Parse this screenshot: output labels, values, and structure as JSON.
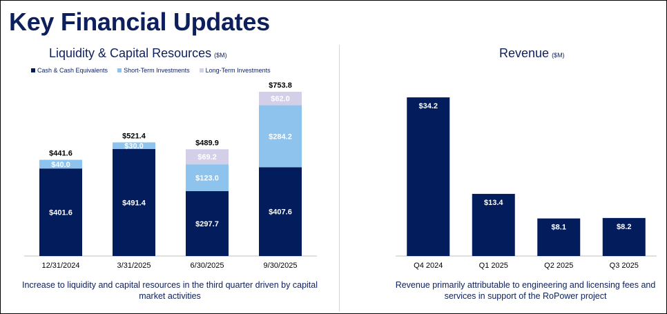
{
  "page": {
    "title": "Key Financial Updates"
  },
  "colors": {
    "navy": "#031c5c",
    "light_blue": "#8dc3ec",
    "lavender": "#d4cfe8",
    "title_navy": "#0d1f5c",
    "axis": "#bfbfbf"
  },
  "chart_data": [
    {
      "type": "bar",
      "stacked": true,
      "title": "Liquidity & Capital Resources",
      "unit": "($M)",
      "categories": [
        "12/31/2024",
        "3/31/2025",
        "6/30/2025",
        "9/30/2025"
      ],
      "series": [
        {
          "name": "Cash & Cash Equivalents",
          "values": [
            401.6,
            491.4,
            297.7,
            407.6
          ],
          "labels": [
            "$401.6",
            "$491.4",
            "$297.7",
            "$407.6"
          ],
          "color": "#031c5c"
        },
        {
          "name": "Short-Term Investments",
          "values": [
            40.0,
            30.0,
            123.0,
            284.2
          ],
          "labels": [
            "$40.0",
            "$30.0",
            "$123.0",
            "$284.2"
          ],
          "color": "#8dc3ec"
        },
        {
          "name": "Long-Term Investments",
          "values": [
            0,
            0,
            69.2,
            62.0
          ],
          "labels": [
            "",
            "",
            "$69.2",
            "$62.0"
          ],
          "color": "#d4cfe8"
        }
      ],
      "totals": [
        441.6,
        521.4,
        489.9,
        753.8
      ],
      "total_labels": [
        "$441.6",
        "$521.4",
        "$489.9",
        "$753.8"
      ],
      "ylim": [
        0,
        760
      ],
      "legend": "top"
    },
    {
      "type": "bar",
      "title": "Revenue",
      "unit": "($M)",
      "categories": [
        "Q4 2024",
        "Q1 2025",
        "Q2 2025",
        "Q3 2025"
      ],
      "values": [
        34.2,
        13.4,
        8.1,
        8.2
      ],
      "labels": [
        "$34.2",
        "$13.4",
        "$8.1",
        "$8.2"
      ],
      "color": "#031c5c",
      "ylim": [
        0,
        36
      ]
    }
  ],
  "captions": {
    "liquidity": "Increase to liquidity and capital resources in the third quarter driven by capital market activities",
    "revenue": "Revenue primarily attributable to engineering and licensing fees and services in support of the RoPower project"
  }
}
